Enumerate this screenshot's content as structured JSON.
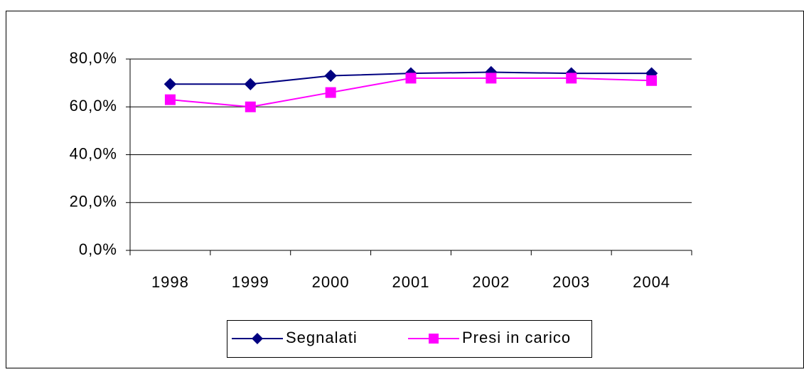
{
  "chart_data": {
    "type": "line",
    "categories": [
      "1998",
      "1999",
      "2000",
      "2001",
      "2002",
      "2003",
      "2004"
    ],
    "series": [
      {
        "name": "Segnalati",
        "color": "#000080",
        "marker": "diamond",
        "values": [
          69.5,
          69.5,
          73,
          74,
          74.5,
          74,
          74
        ]
      },
      {
        "name": "Presi in carico",
        "color": "#ff00ff",
        "marker": "square",
        "values": [
          63,
          60,
          66,
          72,
          72,
          72,
          71
        ]
      }
    ],
    "ylim": [
      0,
      80
    ],
    "yticks": [
      {
        "value": 0,
        "label": "0,0%"
      },
      {
        "value": 20,
        "label": "20,0%"
      },
      {
        "value": 40,
        "label": "40,0%"
      },
      {
        "value": 60,
        "label": "60,0%"
      },
      {
        "value": 80,
        "label": "80,0%"
      }
    ],
    "grid": true,
    "legend": "bottom"
  }
}
